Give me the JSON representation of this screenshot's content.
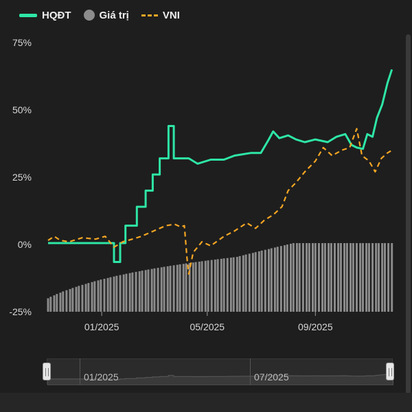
{
  "colors": {
    "hqdt": "#2ee6a6",
    "gia_tri": "#8c8c8c",
    "vni": "#f5a623",
    "background": "#1e1e1e"
  },
  "legend": {
    "hqdt": "HQĐT",
    "gia_tri": "Giá trị",
    "vni": "VNI"
  },
  "chart_data": {
    "type": "line",
    "title": "",
    "xlabel": "",
    "ylabel": "",
    "ylim": [
      -25,
      75
    ],
    "y_ticks": [
      75,
      50,
      25,
      0,
      -25
    ],
    "y_tick_format": "percent",
    "x_range": [
      "2024-11-01",
      "2025-11-28"
    ],
    "x_ticks": [
      {
        "date": "2025-01-01",
        "label": "01/2025"
      },
      {
        "date": "2025-05-01",
        "label": "05/2025"
      },
      {
        "date": "2025-09-01",
        "label": "09/2025"
      }
    ],
    "grid": false,
    "legend_position": "top-left",
    "series": [
      {
        "name": "HQĐT",
        "style": "solid",
        "points": [
          [
            "2024-11-01",
            0.5
          ],
          [
            "2024-11-20",
            0.5
          ],
          [
            "2024-12-15",
            0.5
          ],
          [
            "2025-01-05",
            0.5
          ],
          [
            "2025-01-15",
            0.5
          ],
          [
            "2025-01-15",
            -6.5
          ],
          [
            "2025-01-22",
            -6.5
          ],
          [
            "2025-01-22",
            0.5
          ],
          [
            "2025-01-28",
            0.5
          ],
          [
            "2025-01-28",
            7
          ],
          [
            "2025-02-10",
            7
          ],
          [
            "2025-02-10",
            14
          ],
          [
            "2025-02-20",
            14
          ],
          [
            "2025-02-20",
            20
          ],
          [
            "2025-02-28",
            20
          ],
          [
            "2025-02-28",
            26
          ],
          [
            "2025-03-08",
            26
          ],
          [
            "2025-03-08",
            32
          ],
          [
            "2025-03-18",
            32
          ],
          [
            "2025-03-18",
            44
          ],
          [
            "2025-03-24",
            44
          ],
          [
            "2025-03-24",
            32
          ],
          [
            "2025-04-10",
            32
          ],
          [
            "2025-04-20",
            30
          ],
          [
            "2025-05-05",
            31.5
          ],
          [
            "2025-05-20",
            31.5
          ],
          [
            "2025-06-01",
            33
          ],
          [
            "2025-06-20",
            34
          ],
          [
            "2025-07-01",
            34
          ],
          [
            "2025-07-10",
            39
          ],
          [
            "2025-07-15",
            42
          ],
          [
            "2025-07-22",
            39.5
          ],
          [
            "2025-08-01",
            40.5
          ],
          [
            "2025-08-10",
            39
          ],
          [
            "2025-08-20",
            38
          ],
          [
            "2025-09-01",
            39
          ],
          [
            "2025-09-15",
            38
          ],
          [
            "2025-09-25",
            40
          ],
          [
            "2025-10-05",
            41
          ],
          [
            "2025-10-12",
            37
          ],
          [
            "2025-10-18",
            36
          ],
          [
            "2025-10-25",
            35.5
          ],
          [
            "2025-10-30",
            41
          ],
          [
            "2025-11-05",
            40
          ],
          [
            "2025-11-10",
            47
          ],
          [
            "2025-11-16",
            52
          ],
          [
            "2025-11-22",
            60
          ],
          [
            "2025-11-27",
            65
          ]
        ]
      },
      {
        "name": "VNI",
        "style": "dashed",
        "points": [
          [
            "2024-11-01",
            1.5
          ],
          [
            "2024-11-08",
            3
          ],
          [
            "2024-11-15",
            1.5
          ],
          [
            "2024-11-25",
            1
          ],
          [
            "2024-12-10",
            2.5
          ],
          [
            "2024-12-25",
            2
          ],
          [
            "2025-01-05",
            3
          ],
          [
            "2025-01-15",
            -1
          ],
          [
            "2025-01-25",
            1
          ],
          [
            "2025-02-05",
            2
          ],
          [
            "2025-02-15",
            3
          ],
          [
            "2025-03-01",
            5
          ],
          [
            "2025-03-15",
            7
          ],
          [
            "2025-03-25",
            7.5
          ],
          [
            "2025-04-01",
            6.5
          ],
          [
            "2025-04-05",
            7
          ],
          [
            "2025-04-08",
            -5
          ],
          [
            "2025-04-10",
            -11
          ],
          [
            "2025-04-15",
            -3
          ],
          [
            "2025-04-25",
            1
          ],
          [
            "2025-05-05",
            -0.5
          ],
          [
            "2025-05-20",
            3
          ],
          [
            "2025-06-01",
            5
          ],
          [
            "2025-06-15",
            8
          ],
          [
            "2025-06-25",
            6
          ],
          [
            "2025-07-05",
            9
          ],
          [
            "2025-07-15",
            11
          ],
          [
            "2025-07-25",
            14
          ],
          [
            "2025-08-01",
            20
          ],
          [
            "2025-08-10",
            23
          ],
          [
            "2025-08-20",
            27
          ],
          [
            "2025-09-01",
            31
          ],
          [
            "2025-09-10",
            36
          ],
          [
            "2025-09-20",
            33
          ],
          [
            "2025-10-01",
            35
          ],
          [
            "2025-10-10",
            36
          ],
          [
            "2025-10-18",
            43
          ],
          [
            "2025-10-24",
            33
          ],
          [
            "2025-11-01",
            31
          ],
          [
            "2025-11-08",
            27
          ],
          [
            "2025-11-15",
            32
          ],
          [
            "2025-11-22",
            34
          ],
          [
            "2025-11-27",
            35
          ]
        ]
      }
    ],
    "bars": {
      "name": "Giá trị",
      "from": [
        "2024-11-01",
        -20
      ],
      "to": [
        "2025-11-27",
        0.5
      ],
      "count": 110
    }
  },
  "slider": {
    "labels": [
      "01/2025",
      "07/2025"
    ]
  }
}
